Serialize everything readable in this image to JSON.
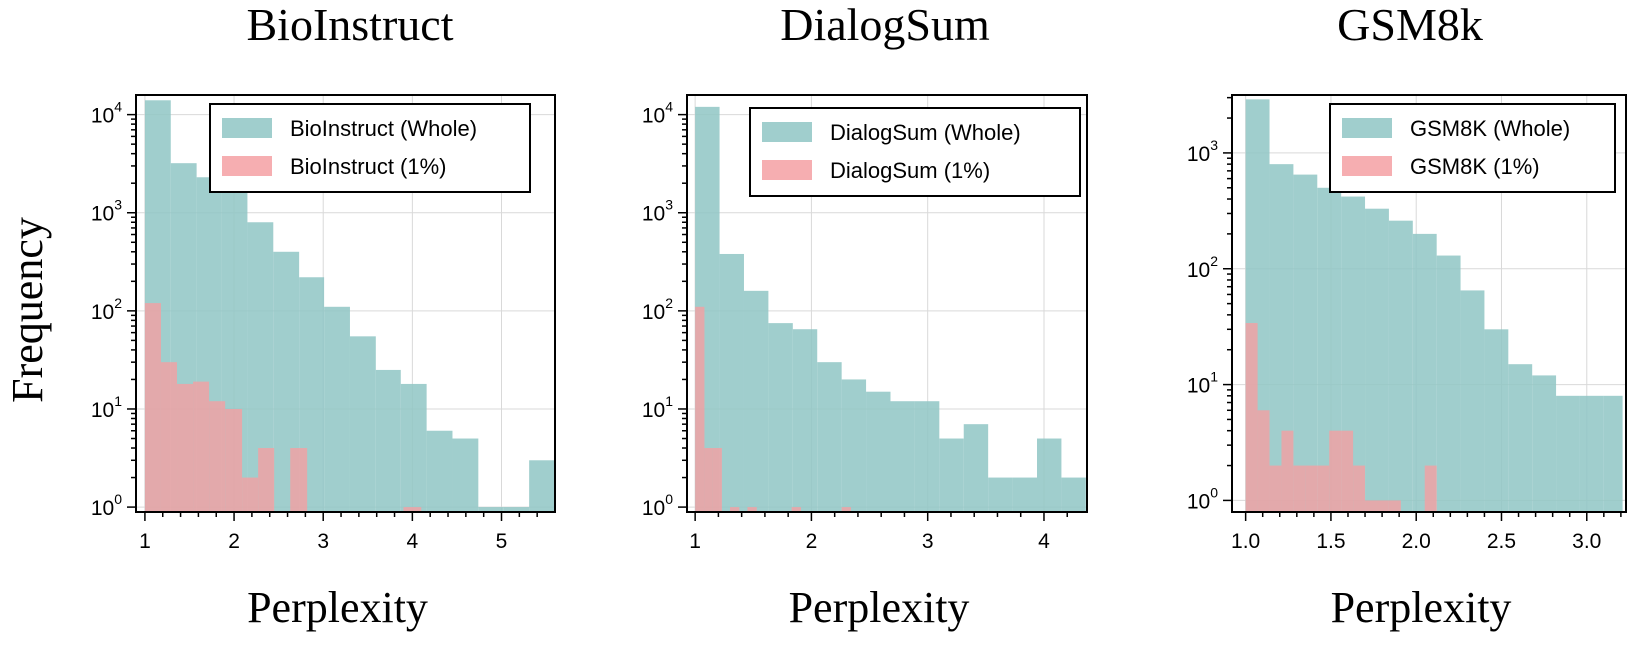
{
  "figure": {
    "ylabel": "Frequency",
    "colors": {
      "whole": "#8fc5c4",
      "subset": "#f4a0a3"
    }
  },
  "chart_data": [
    {
      "type": "histogram",
      "title": "BioInstruct",
      "xlabel": "Perplexity",
      "ylabel": "Frequency",
      "yscale": "log",
      "xlim": [
        0.9,
        5.6
      ],
      "ylim_exp": [
        -0.05,
        4.2
      ],
      "xticks": [
        1,
        2,
        3,
        4,
        5
      ],
      "xtick_labels": [
        "1",
        "2",
        "3",
        "4",
        "5"
      ],
      "ytick_exps": [
        0,
        1,
        2,
        3,
        4
      ],
      "legend_loc": "top-right",
      "series": [
        {
          "name": "BioInstruct (Whole)",
          "role": "whole",
          "bins": [
            [
              1.0,
              1.29,
              14000
            ],
            [
              1.29,
              1.58,
              3200
            ],
            [
              1.58,
              1.86,
              2300
            ],
            [
              1.86,
              2.15,
              1800
            ],
            [
              2.15,
              2.44,
              800
            ],
            [
              2.44,
              2.73,
              400
            ],
            [
              2.73,
              3.01,
              220
            ],
            [
              3.01,
              3.3,
              110
            ],
            [
              3.3,
              3.59,
              55
            ],
            [
              3.59,
              3.87,
              25
            ],
            [
              3.87,
              4.16,
              18
            ],
            [
              4.16,
              4.45,
              6
            ],
            [
              4.45,
              4.74,
              5
            ],
            [
              4.74,
              5.02,
              1
            ],
            [
              5.02,
              5.31,
              1
            ],
            [
              5.31,
              5.59,
              3
            ]
          ]
        },
        {
          "name": "BioInstruct (1%)",
          "role": "subset",
          "bins": [
            [
              1.0,
              1.18,
              120
            ],
            [
              1.18,
              1.36,
              30
            ],
            [
              1.36,
              1.54,
              18
            ],
            [
              1.54,
              1.72,
              19
            ],
            [
              1.72,
              1.9,
              12
            ],
            [
              1.9,
              2.09,
              10
            ],
            [
              2.09,
              2.27,
              2
            ],
            [
              2.27,
              2.45,
              4
            ],
            [
              2.63,
              2.82,
              4
            ],
            [
              3.9,
              4.1,
              1
            ]
          ]
        }
      ]
    },
    {
      "type": "histogram",
      "title": "DialogSum",
      "xlabel": "Perplexity",
      "ylabel": "Frequency",
      "yscale": "log",
      "xlim": [
        0.93,
        4.37
      ],
      "ylim_exp": [
        -0.05,
        4.2
      ],
      "xticks": [
        1,
        2,
        3,
        4
      ],
      "xtick_labels": [
        "1",
        "2",
        "3",
        "4"
      ],
      "ytick_exps": [
        0,
        1,
        2,
        3,
        4
      ],
      "legend_loc": "top-right",
      "series": [
        {
          "name": "DialogSum (Whole)",
          "role": "whole",
          "bins": [
            [
              1.0,
              1.21,
              12000
            ],
            [
              1.21,
              1.42,
              380
            ],
            [
              1.42,
              1.63,
              160
            ],
            [
              1.63,
              1.84,
              75
            ],
            [
              1.84,
              2.05,
              65
            ],
            [
              2.05,
              2.26,
              30
            ],
            [
              2.26,
              2.47,
              20
            ],
            [
              2.47,
              2.68,
              15
            ],
            [
              2.68,
              2.89,
              12
            ],
            [
              2.89,
              3.1,
              12
            ],
            [
              3.1,
              3.31,
              5
            ],
            [
              3.31,
              3.52,
              7
            ],
            [
              3.52,
              3.73,
              2
            ],
            [
              3.73,
              3.94,
              2
            ],
            [
              3.94,
              4.15,
              5
            ],
            [
              4.15,
              4.36,
              2
            ]
          ]
        },
        {
          "name": "DialogSum (1%)",
          "role": "subset",
          "bins": [
            [
              1.0,
              1.08,
              110
            ],
            [
              1.08,
              1.15,
              4
            ],
            [
              1.15,
              1.23,
              4
            ],
            [
              1.3,
              1.38,
              1
            ],
            [
              1.45,
              1.53,
              1
            ],
            [
              1.83,
              1.91,
              1
            ],
            [
              2.26,
              2.34,
              1
            ]
          ]
        }
      ]
    },
    {
      "type": "histogram",
      "title": "GSM8k",
      "xlabel": "Perplexity",
      "ylabel": "Frequency",
      "yscale": "log",
      "xlim": [
        0.92,
        3.23
      ],
      "ylim_exp": [
        -0.1,
        3.5
      ],
      "xticks": [
        1.0,
        1.5,
        2.0,
        2.5,
        3.0
      ],
      "xtick_labels": [
        "1.0",
        "1.5",
        "2.0",
        "2.5",
        "3.0"
      ],
      "ytick_exps": [
        0,
        1,
        2,
        3
      ],
      "legend_loc": "top-right",
      "series": [
        {
          "name": "GSM8K (Whole)",
          "role": "whole",
          "bins": [
            [
              1.0,
              1.14,
              2900
            ],
            [
              1.14,
              1.28,
              800
            ],
            [
              1.28,
              1.42,
              650
            ],
            [
              1.42,
              1.56,
              500
            ],
            [
              1.56,
              1.7,
              420
            ],
            [
              1.7,
              1.84,
              330
            ],
            [
              1.84,
              1.98,
              260
            ],
            [
              1.98,
              2.12,
              200
            ],
            [
              2.12,
              2.26,
              130
            ],
            [
              2.26,
              2.4,
              65
            ],
            [
              2.4,
              2.54,
              30
            ],
            [
              2.54,
              2.68,
              15
            ],
            [
              2.68,
              2.82,
              12
            ],
            [
              2.82,
              2.96,
              8
            ],
            [
              2.96,
              3.1,
              8
            ],
            [
              3.1,
              3.21,
              8
            ]
          ]
        },
        {
          "name": "GSM8K (1%)",
          "role": "subset",
          "bins": [
            [
              1.0,
              1.07,
              34
            ],
            [
              1.07,
              1.14,
              6
            ],
            [
              1.14,
              1.21,
              2
            ],
            [
              1.21,
              1.28,
              4
            ],
            [
              1.28,
              1.35,
              2
            ],
            [
              1.35,
              1.42,
              2
            ],
            [
              1.42,
              1.49,
              2
            ],
            [
              1.49,
              1.56,
              4
            ],
            [
              1.56,
              1.63,
              4
            ],
            [
              1.63,
              1.7,
              2
            ],
            [
              1.7,
              1.77,
              1
            ],
            [
              1.77,
              1.84,
              1
            ],
            [
              1.84,
              1.91,
              1
            ],
            [
              2.05,
              2.12,
              2
            ]
          ]
        }
      ]
    }
  ]
}
